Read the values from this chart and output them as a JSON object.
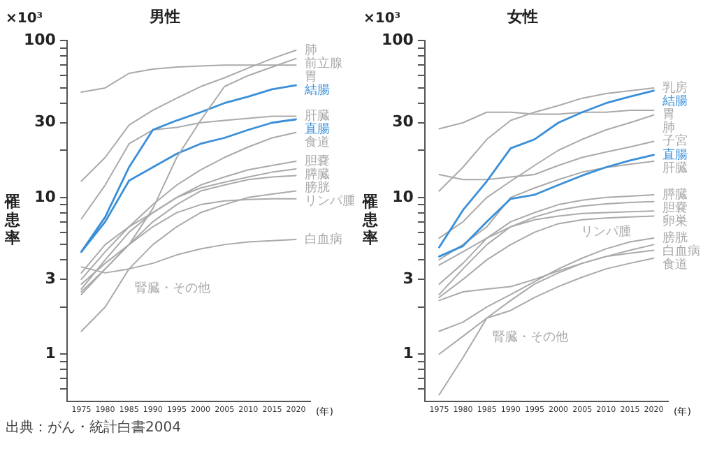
{
  "chart_data": [
    {
      "type": "line",
      "title": "男性",
      "xlabel": "(年)",
      "ylabel": "罹患率",
      "annotations": [
        "×10³",
        "出典：がん・統計白書2004"
      ],
      "x": [
        1975,
        1980,
        1985,
        1990,
        1995,
        2000,
        2005,
        2010,
        2015,
        2020
      ],
      "series": [
        {
          "name": "肺",
          "color": "#aaaaaa",
          "values": [
            12.7,
            18,
            29,
            36,
            43,
            51,
            58,
            67,
            77,
            87
          ]
        },
        {
          "name": "前立腺",
          "color": "#aaaaaa",
          "values": [
            2.5,
            3.5,
            5,
            8.5,
            18,
            31,
            51,
            60,
            68,
            77
          ]
        },
        {
          "name": "胃",
          "color": "#aaaaaa",
          "values": [
            47,
            50,
            62,
            66,
            68,
            69,
            70,
            70,
            70,
            70
          ]
        },
        {
          "name": "結腸",
          "color": "#3a8fd8",
          "values": [
            4.5,
            7.5,
            15.6,
            27,
            31,
            35,
            40,
            44,
            49,
            52
          ]
        },
        {
          "name": "肝臓",
          "color": "#aaaaaa",
          "values": [
            7.3,
            12,
            22,
            27,
            28,
            30,
            31,
            32,
            33,
            33
          ]
        },
        {
          "name": "直腸",
          "color": "#3a8fd8",
          "values": [
            4.5,
            7,
            12.8,
            15.6,
            19,
            22,
            24,
            27,
            30,
            31.5
          ]
        },
        {
          "name": "食道",
          "color": "#aaaaaa",
          "values": [
            3,
            4.5,
            6.5,
            9,
            12,
            15,
            18,
            21,
            24,
            26
          ]
        },
        {
          "name": "胆嚢",
          "color": "#aaaaaa",
          "values": [
            2.6,
            4,
            6,
            8,
            10,
            12,
            13.5,
            15,
            16,
            17
          ]
        },
        {
          "name": "膵臓",
          "color": "#aaaaaa",
          "values": [
            3.3,
            5,
            6.5,
            8,
            10,
            11.5,
            12.5,
            13.5,
            14.5,
            15.2
          ]
        },
        {
          "name": "膀胱",
          "color": "#aaaaaa",
          "values": [
            2.4,
            3.5,
            5,
            7,
            9,
            11,
            12,
            13,
            13.5,
            13.8
          ]
        },
        {
          "name": "腎臓・その他",
          "color": "#aaaaaa",
          "values": [
            1.4,
            2,
            3.5,
            5,
            6.5,
            8,
            9,
            10,
            10.5,
            11
          ]
        },
        {
          "name": "リンパ腫",
          "color": "#aaaaaa",
          "values": [
            2.8,
            3.8,
            5,
            6.5,
            8,
            9,
            9.5,
            9.7,
            9.8,
            9.8
          ]
        },
        {
          "name": "白血病",
          "color": "#aaaaaa",
          "values": [
            3.6,
            3.3,
            3.5,
            3.8,
            4.3,
            4.7,
            5,
            5.2,
            5.3,
            5.4
          ]
        }
      ],
      "xlim": [
        1972,
        2023
      ],
      "xticks": [
        1975,
        1980,
        1985,
        1990,
        1995,
        2000,
        2005,
        2010,
        2015,
        2020
      ],
      "ylim": [
        0.5,
        100
      ],
      "yticks": [
        {
          "value": 0.6,
          "label": null
        },
        {
          "value": 0.7,
          "label": null
        },
        {
          "value": 0.8,
          "label": null
        },
        {
          "value": 0.9,
          "label": null
        },
        1,
        {
          "value": 2,
          "label": null
        },
        3,
        {
          "value": 4,
          "label": null
        },
        {
          "value": 5,
          "label": null
        },
        {
          "value": 6,
          "label": null
        },
        {
          "value": 7,
          "label": null
        },
        {
          "value": 8,
          "label": null
        },
        {
          "value": 9,
          "label": null
        },
        10,
        {
          "value": 20,
          "label": null
        },
        30,
        {
          "value": 40,
          "label": null
        },
        {
          "value": 50,
          "label": null
        },
        {
          "value": 60,
          "label": null
        },
        {
          "value": 70,
          "label": null
        },
        {
          "value": 80,
          "label": null
        },
        {
          "value": 90,
          "label": null
        },
        100
      ],
      "log": "y",
      "grid": false,
      "legend": false,
      "marker": "none",
      "line_style": "solid"
    },
    {
      "type": "line",
      "title": "女性",
      "xlabel": "(年)",
      "ylabel": "罹患率",
      "annotations": [
        "×10³"
      ],
      "x": [
        1975,
        1980,
        1985,
        1990,
        1995,
        2000,
        2005,
        2010,
        2015,
        2020
      ],
      "series": [
        {
          "name": "乳房",
          "color": "#aaaaaa",
          "values": [
            11,
            15.6,
            23.5,
            31,
            35,
            38.6,
            43,
            46,
            48,
            50
          ]
        },
        {
          "name": "結腸",
          "color": "#3a8fd8",
          "values": [
            4.8,
            8.3,
            12.7,
            20.6,
            23.5,
            30,
            35,
            40,
            44,
            48
          ]
        },
        {
          "name": "胃",
          "color": "#aaaaaa",
          "values": [
            27.4,
            30,
            35,
            35,
            34,
            34,
            35,
            35,
            36,
            36
          ]
        },
        {
          "name": "肺",
          "color": "#aaaaaa",
          "values": [
            5.5,
            7,
            10,
            12.7,
            16,
            20,
            23.5,
            27,
            30,
            33.6
          ]
        },
        {
          "name": "子宮",
          "color": "#aaaaaa",
          "values": [
            14,
            13,
            13,
            13.5,
            14,
            16,
            18,
            19.5,
            21,
            22.8
          ]
        },
        {
          "name": "直腸",
          "color": "#3a8fd8",
          "values": [
            4.2,
            4.9,
            7,
            9.8,
            10.4,
            12,
            13.8,
            15.6,
            17.2,
            18.7
          ]
        },
        {
          "name": "肝臓",
          "color": "#aaaaaa",
          "values": [
            4,
            5,
            6.5,
            10,
            11.5,
            13,
            14.5,
            15.5,
            16.3,
            17
          ]
        },
        {
          "name": "膵臓",
          "color": "#aaaaaa",
          "values": [
            2.8,
            3.8,
            5.5,
            7,
            8,
            9,
            9.6,
            10,
            10.2,
            10.4
          ]
        },
        {
          "name": "胆嚢",
          "color": "#aaaaaa",
          "values": [
            2.4,
            3.5,
            5,
            6.5,
            7.5,
            8.3,
            8.8,
            9.1,
            9.3,
            9.4
          ]
        },
        {
          "name": "卵巣",
          "color": "#aaaaaa",
          "values": [
            3.7,
            4.5,
            5.5,
            6.5,
            7.2,
            7.6,
            7.9,
            8,
            8.1,
            8.2
          ]
        },
        {
          "name": "リンパ腫",
          "color": "#aaaaaa",
          "values": [
            2.3,
            3,
            4,
            5,
            6,
            6.8,
            7.2,
            7.4,
            7.5,
            7.6
          ]
        },
        {
          "name": "膀胱",
          "color": "#aaaaaa",
          "values": [
            1.4,
            1.6,
            2,
            2.4,
            2.9,
            3.5,
            4.1,
            4.7,
            5.2,
            5.5
          ]
        },
        {
          "name": "腎臓・その他",
          "color": "#aaaaaa",
          "values": [
            0.55,
            0.95,
            1.7,
            2.2,
            2.8,
            3.3,
            3.8,
            4.2,
            4.6,
            5
          ]
        },
        {
          "name": "白血病",
          "color": "#aaaaaa",
          "values": [
            2.2,
            2.5,
            2.6,
            2.7,
            3,
            3.4,
            3.8,
            4.2,
            4.4,
            4.6
          ]
        },
        {
          "name": "食道",
          "color": "#aaaaaa",
          "values": [
            1,
            1.3,
            1.7,
            1.9,
            2.3,
            2.7,
            3.1,
            3.5,
            3.8,
            4.1
          ]
        }
      ],
      "xlim": [
        1972,
        2023
      ],
      "xticks": [
        1975,
        1980,
        1985,
        1990,
        1995,
        2000,
        2005,
        2010,
        2015,
        2020
      ],
      "ylim": [
        0.5,
        100
      ],
      "yticks": [
        {
          "value": 0.6,
          "label": null
        },
        {
          "value": 0.7,
          "label": null
        },
        {
          "value": 0.8,
          "label": null
        },
        {
          "value": 0.9,
          "label": null
        },
        1,
        {
          "value": 2,
          "label": null
        },
        3,
        {
          "value": 4,
          "label": null
        },
        {
          "value": 5,
          "label": null
        },
        {
          "value": 6,
          "label": null
        },
        {
          "value": 7,
          "label": null
        },
        {
          "value": 8,
          "label": null
        },
        {
          "value": 9,
          "label": null
        },
        10,
        {
          "value": 20,
          "label": null
        },
        30,
        {
          "value": 40,
          "label": null
        },
        {
          "value": 50,
          "label": null
        },
        {
          "value": 60,
          "label": null
        },
        {
          "value": 70,
          "label": null
        },
        {
          "value": 80,
          "label": null
        },
        {
          "value": 90,
          "label": null
        },
        100
      ],
      "log": "y",
      "grid": false,
      "legend": false,
      "marker": "none",
      "line_style": "solid"
    }
  ]
}
